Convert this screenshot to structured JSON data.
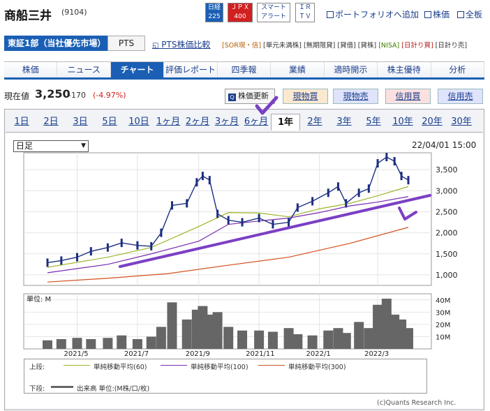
{
  "header": {
    "title": "商船三井",
    "code": "(9104)"
  },
  "news_buttons": [
    {
      "line1": "日経",
      "line2": "225",
      "bg": "#1a5fb4",
      "fg": "#ffffff"
    },
    {
      "line1": "ＪＰＸ",
      "line2": "400",
      "bg": "#d02020",
      "fg": "#ffffff"
    },
    {
      "line1": "スマート",
      "line2": "アラート",
      "bg": "#ffffff",
      "fg": "#1a3e8c"
    },
    {
      "line1": "ＩＲ",
      "line2": "ＴＶ",
      "bg": "#ffffff",
      "fg": "#1a3e8c"
    }
  ],
  "top_links": {
    "portfolio": "ポートフォリオへ追加",
    "stock": "株価",
    "board": "全板"
  },
  "market": {
    "label": "東証1部（当社優先市場）",
    "pts": "PTS",
    "pts_compare": "PTS株価比較"
  },
  "tags": [
    "[SOR現・信]",
    "[単元未満株]",
    "[無期限貸]",
    "[貸借]",
    "[貸株]",
    "[NISA]",
    "[日計り買]",
    "[日計り売]"
  ],
  "nav": {
    "items": [
      "株価",
      "ニュース",
      "チャート",
      "評価レポート",
      "四季報",
      "業績",
      "適時開示",
      "株主優待",
      "分析"
    ],
    "active": 2
  },
  "quote": {
    "label": "現在値",
    "price": "3,250",
    "change": "-170",
    "change_pct": "(-4.97%)"
  },
  "actions": {
    "refresh": "株価更新",
    "buy_cash": "現物買",
    "sell_cash": "現物売",
    "buy_margin": "信用買",
    "sell_margin": "信用売"
  },
  "periods": {
    "items": [
      "1日",
      "2日",
      "3日",
      "5日",
      "10日",
      "1ヶ月",
      "2ヶ月",
      "3ヶ月",
      "6ヶ月",
      "1年",
      "2年",
      "3年",
      "5年",
      "10年",
      "20年",
      "30年"
    ],
    "selected": 9
  },
  "chart_controls": {
    "interval": "日足",
    "timestamp": "22/04/01 15:00"
  },
  "chart_data": {
    "type": "line",
    "price_axis": {
      "ticks": [
        1000,
        1500,
        2000,
        2500,
        3000,
        3500
      ],
      "labels": [
        "1,000",
        "1,500",
        "2,000",
        "2,500",
        "3,000",
        "3,500"
      ],
      "ylim": [
        750,
        3900
      ]
    },
    "volume_axis": {
      "title": "単位: M",
      "ticks": [
        "10M",
        "20M",
        "30M",
        "40M"
      ]
    },
    "x_labels": [
      "2021/5",
      "2021/7",
      "2021/9",
      "2021/11",
      "2022/1",
      "2022/3"
    ],
    "price_close": [
      {
        "x": "2021-04-01",
        "y": 1290
      },
      {
        "x": "2021-04-15",
        "y": 1340
      },
      {
        "x": "2021-05-01",
        "y": 1420
      },
      {
        "x": "2021-05-15",
        "y": 1560
      },
      {
        "x": "2021-06-01",
        "y": 1650
      },
      {
        "x": "2021-06-15",
        "y": 1760
      },
      {
        "x": "2021-07-01",
        "y": 1700
      },
      {
        "x": "2021-07-15",
        "y": 1680
      },
      {
        "x": "2021-07-25",
        "y": 2000
      },
      {
        "x": "2021-08-05",
        "y": 2650
      },
      {
        "x": "2021-08-20",
        "y": 2700
      },
      {
        "x": "2021-08-30",
        "y": 3200
      },
      {
        "x": "2021-09-05",
        "y": 3350
      },
      {
        "x": "2021-09-12",
        "y": 3250
      },
      {
        "x": "2021-09-20",
        "y": 2450
      },
      {
        "x": "2021-10-01",
        "y": 2300
      },
      {
        "x": "2021-10-15",
        "y": 2250
      },
      {
        "x": "2021-11-01",
        "y": 2350
      },
      {
        "x": "2021-11-15",
        "y": 2200
      },
      {
        "x": "2021-12-01",
        "y": 2250
      },
      {
        "x": "2021-12-10",
        "y": 2600
      },
      {
        "x": "2021-12-25",
        "y": 2750
      },
      {
        "x": "2022-01-10",
        "y": 2950
      },
      {
        "x": "2022-01-20",
        "y": 3100
      },
      {
        "x": "2022-01-28",
        "y": 2700
      },
      {
        "x": "2022-02-10",
        "y": 2950
      },
      {
        "x": "2022-02-20",
        "y": 3050
      },
      {
        "x": "2022-03-01",
        "y": 3650
      },
      {
        "x": "2022-03-10",
        "y": 3800
      },
      {
        "x": "2022-03-18",
        "y": 3700
      },
      {
        "x": "2022-03-25",
        "y": 3350
      },
      {
        "x": "2022-04-01",
        "y": 3250
      }
    ],
    "series": [
      {
        "name": "単純移動平均(60)",
        "color": "#9fb52a",
        "values": [
          {
            "x": "2021-04-01",
            "y": 1180
          },
          {
            "x": "2021-06-01",
            "y": 1420
          },
          {
            "x": "2021-07-15",
            "y": 1650
          },
          {
            "x": "2021-09-01",
            "y": 2150
          },
          {
            "x": "2021-10-01",
            "y": 2480
          },
          {
            "x": "2021-11-01",
            "y": 2470
          },
          {
            "x": "2021-12-01",
            "y": 2380
          },
          {
            "x": "2022-01-01",
            "y": 2570
          },
          {
            "x": "2022-02-01",
            "y": 2700
          },
          {
            "x": "2022-03-01",
            "y": 2880
          },
          {
            "x": "2022-04-01",
            "y": 3100
          }
        ]
      },
      {
        "name": "単純移動平均(100)",
        "color": "#7a2ab0",
        "values": [
          {
            "x": "2021-04-01",
            "y": 1050
          },
          {
            "x": "2021-06-01",
            "y": 1250
          },
          {
            "x": "2021-07-15",
            "y": 1500
          },
          {
            "x": "2021-09-01",
            "y": 1800
          },
          {
            "x": "2021-10-01",
            "y": 2200
          },
          {
            "x": "2021-11-01",
            "y": 2280
          },
          {
            "x": "2021-12-01",
            "y": 2350
          },
          {
            "x": "2022-01-01",
            "y": 2480
          },
          {
            "x": "2022-02-01",
            "y": 2640
          },
          {
            "x": "2022-03-01",
            "y": 2730
          },
          {
            "x": "2022-04-01",
            "y": 2860
          }
        ]
      },
      {
        "name": "単純移動平均(300)",
        "color": "#d2501e",
        "values": [
          {
            "x": "2021-04-01",
            "y": 830
          },
          {
            "x": "2021-06-01",
            "y": 920
          },
          {
            "x": "2021-08-01",
            "y": 1030
          },
          {
            "x": "2021-10-01",
            "y": 1230
          },
          {
            "x": "2021-12-01",
            "y": 1420
          },
          {
            "x": "2022-02-01",
            "y": 1750
          },
          {
            "x": "2022-04-01",
            "y": 2130
          }
        ]
      }
    ],
    "volume": {
      "name": "出来高 単位:(M株/口/枚)",
      "color": "#666666",
      "values": [
        {
          "x": "2021-04-01",
          "y": 7
        },
        {
          "x": "2021-04-15",
          "y": 8
        },
        {
          "x": "2021-05-01",
          "y": 9
        },
        {
          "x": "2021-05-15",
          "y": 8
        },
        {
          "x": "2021-06-01",
          "y": 9
        },
        {
          "x": "2021-06-15",
          "y": 11
        },
        {
          "x": "2021-07-01",
          "y": 8
        },
        {
          "x": "2021-07-15",
          "y": 10
        },
        {
          "x": "2021-07-25",
          "y": 18
        },
        {
          "x": "2021-08-05",
          "y": 38
        },
        {
          "x": "2021-08-20",
          "y": 24
        },
        {
          "x": "2021-08-30",
          "y": 32
        },
        {
          "x": "2021-09-05",
          "y": 35
        },
        {
          "x": "2021-09-12",
          "y": 28
        },
        {
          "x": "2021-09-20",
          "y": 30
        },
        {
          "x": "2021-10-01",
          "y": 18
        },
        {
          "x": "2021-10-15",
          "y": 15
        },
        {
          "x": "2021-11-01",
          "y": 15
        },
        {
          "x": "2021-11-15",
          "y": 14
        },
        {
          "x": "2021-12-01",
          "y": 17
        },
        {
          "x": "2021-12-10",
          "y": 12
        },
        {
          "x": "2021-12-25",
          "y": 11
        },
        {
          "x": "2022-01-10",
          "y": 15
        },
        {
          "x": "2022-01-20",
          "y": 17
        },
        {
          "x": "2022-01-28",
          "y": 13
        },
        {
          "x": "2022-02-10",
          "y": 22
        },
        {
          "x": "2022-02-20",
          "y": 17
        },
        {
          "x": "2022-03-01",
          "y": 36
        },
        {
          "x": "2022-03-10",
          "y": 41
        },
        {
          "x": "2022-03-18",
          "y": 28
        },
        {
          "x": "2022-03-25",
          "y": 24
        },
        {
          "x": "2022-04-01",
          "y": 17
        }
      ]
    }
  },
  "annotations": {
    "color": "#7b3fc4"
  },
  "legend": {
    "upper_label": "上段:",
    "lower_label": "下段:",
    "items": [
      "単純移動平均(60)",
      "単純移動平均(100)",
      "単純移動平均(300)"
    ],
    "volume_item": "出来高 単位:(M株/口/枚)"
  },
  "copyright": "(c)Quants Research Inc."
}
